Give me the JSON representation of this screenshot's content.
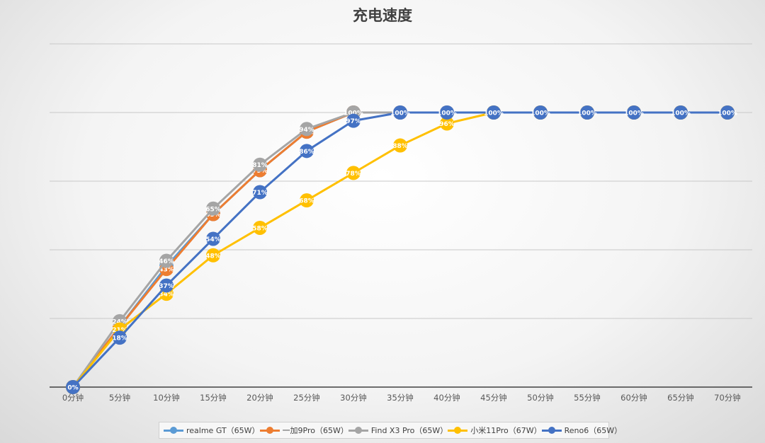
{
  "chart_data": {
    "type": "line",
    "title": "充电速度",
    "categories": [
      "0分钟",
      "5分钟",
      "10分钟",
      "15分钟",
      "20分钟",
      "25分钟",
      "30分钟",
      "35分钟",
      "40分钟",
      "45分钟",
      "50分钟",
      "55分钟",
      "60分钟",
      "65分钟",
      "70分钟"
    ],
    "ylim": [
      0,
      125
    ],
    "grid": true,
    "legend_position": "bottom",
    "series": [
      {
        "name": "realme GT（65W）",
        "color": "#5B9BD5",
        "values": [
          0,
          22,
          44,
          63,
          79,
          93,
          100,
          100,
          100,
          100,
          100,
          100,
          100,
          100,
          100
        ]
      },
      {
        "name": "一加9Pro（65W）",
        "color": "#ED7D31",
        "values": [
          0,
          22,
          43,
          63,
          79,
          93,
          100,
          100,
          100,
          100,
          100,
          100,
          100,
          100,
          100
        ]
      },
      {
        "name": "Find X3 Pro（65W）",
        "color": "#A5A5A5",
        "values": [
          0,
          24,
          46,
          65,
          81,
          94,
          100,
          100,
          100,
          100,
          100,
          100,
          100,
          100,
          100
        ]
      },
      {
        "name": "小米11Pro（67W）",
        "color": "#FFC000",
        "values": [
          0,
          21,
          34,
          48,
          58,
          68,
          78,
          88,
          96,
          100,
          100,
          100,
          100,
          100,
          100
        ]
      },
      {
        "name": "Reno6（65W）",
        "color": "#4472C4",
        "values": [
          0,
          18,
          37,
          54,
          71,
          86,
          97,
          100,
          100,
          100,
          100,
          100,
          100,
          100,
          100
        ]
      }
    ]
  }
}
